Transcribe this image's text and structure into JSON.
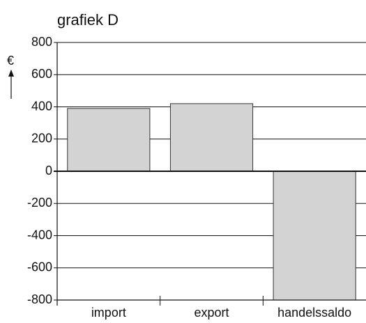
{
  "chart_data": {
    "type": "bar",
    "title": "grafiek D",
    "y_label": "€",
    "categories": [
      "import",
      "export",
      "handelssaldo"
    ],
    "values": [
      390,
      420,
      -800
    ],
    "color": "#d3d3d3",
    "ylim": [
      -800,
      800
    ],
    "yticks": [
      -800,
      -600,
      -400,
      -200,
      0,
      200,
      400,
      600,
      800
    ],
    "grid": true
  }
}
